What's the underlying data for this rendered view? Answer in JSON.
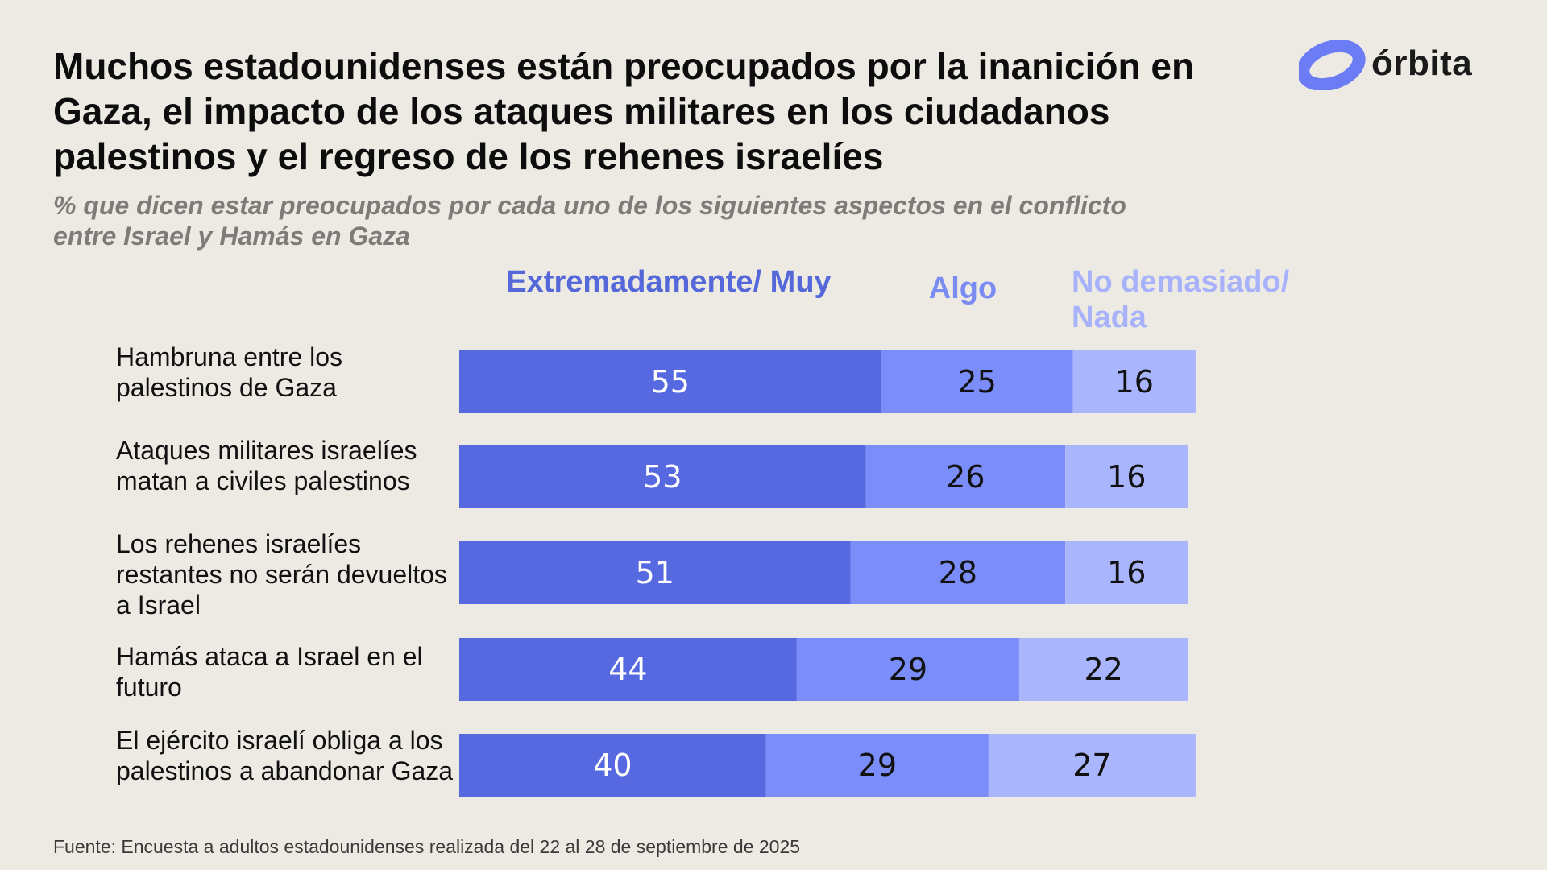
{
  "header": {
    "title": "Muchos estadounidenses están preocupados por la inanición en Gaza, el impacto de los ataques militares en los ciudadanos palestinos y el regreso de los rehenes israelíes",
    "subtitle": "% que dicen estar preocupados por cada uno de los siguientes aspectos en el conflicto entre Israel y Hamás en Gaza"
  },
  "brand": {
    "name": "órbita",
    "icon": "orbit-logo-icon",
    "color": "#6b7cf5"
  },
  "source": "Fuente: Encuesta a adultos estadounidenses realizada del 22 al 28 de septiembre de 2025",
  "chart_data": {
    "type": "bar",
    "orientation": "horizontal",
    "stacked": true,
    "legend_position": "top",
    "categories": [
      "Hambruna entre los palestinos de Gaza",
      "Ataques militares israelíes matan a civiles palestinos",
      "Los rehenes israelíes restantes no serán devueltos a Israel",
      "Hamás ataca a Israel en el futuro",
      "El ejército israelí obliga a los palestinos a abandonar Gaza"
    ],
    "series": [
      {
        "name": "Extremadamente/ Muy",
        "values": [
          55,
          53,
          51,
          44,
          40
        ],
        "color": "#5769e0",
        "label_color": "#ffffff",
        "legend_color": "#5468d9"
      },
      {
        "name": "Algo",
        "values": [
          25,
          26,
          28,
          29,
          29
        ],
        "color": "#7b8df9",
        "label_color": "#111111",
        "legend_color": "#7a8bf2"
      },
      {
        "name": "No demasiado/ Nada",
        "values": [
          16,
          16,
          16,
          22,
          27
        ],
        "color": "#a9b6fd",
        "label_color": "#111111",
        "legend_color": "#a7b2fb"
      }
    ],
    "xlim": [
      0,
      100
    ],
    "grid": false
  }
}
